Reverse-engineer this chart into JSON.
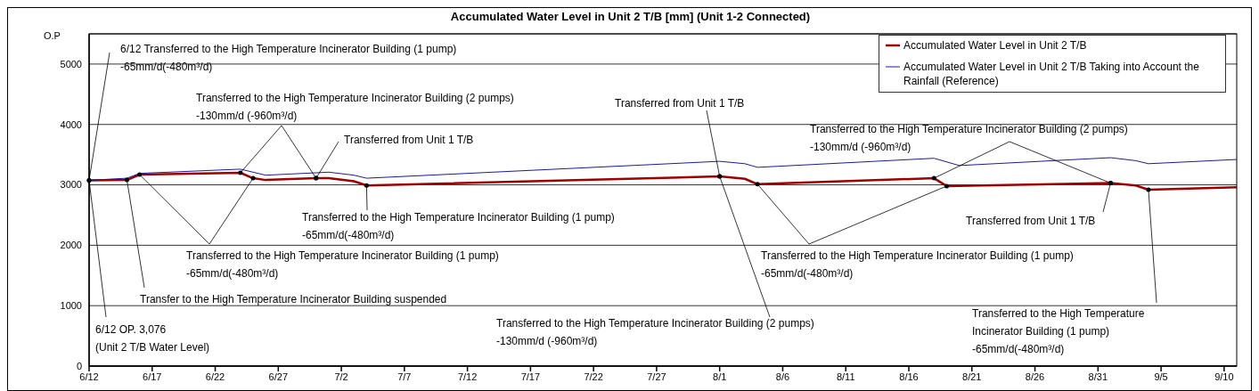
{
  "chart_data": {
    "type": "line",
    "title": "Accumulated Water Level in Unit 2 T/B [mm] (Unit 1-2 Connected)",
    "ylabel": "O.P",
    "series": [
      {
        "name": "Accumulated Water Level in Unit 2 T/B",
        "color": "#a00000",
        "x": [
          "--06-12",
          "--06-15",
          "--06-16",
          "--06-24",
          "--06-25",
          "--06-26",
          "--06-30",
          "--07-01",
          "--07-03",
          "--07-04",
          "--08-01",
          "--08-03",
          "--08-04",
          "--08-18",
          "--08-19",
          "--09-01",
          "--09-03",
          "--09-04",
          "--09-11"
        ],
        "values": [
          3076,
          3080,
          3170,
          3200,
          3110,
          3080,
          3110,
          3110,
          3060,
          2990,
          3140,
          3100,
          3010,
          3110,
          2980,
          3030,
          2990,
          2920,
          2960
        ]
      },
      {
        "name": "Accumulated Water Level in Unit 2 T/B Taking into Account the Rainfall (Reference)",
        "color": "#1a1aa0",
        "x": [
          "--06-12",
          "--06-15",
          "--06-16",
          "--06-24",
          "--06-26",
          "--07-01",
          "--07-03",
          "--07-04",
          "--08-01",
          "--08-03",
          "--08-04",
          "--08-18",
          "--08-20",
          "--09-01",
          "--09-03",
          "--09-04",
          "--09-11"
        ],
        "values": [
          3076,
          3110,
          3190,
          3260,
          3160,
          3210,
          3160,
          3110,
          3390,
          3350,
          3290,
          3440,
          3320,
          3450,
          3400,
          3350,
          3420
        ]
      }
    ],
    "xlim": [
      "--06-12",
      "--09-11"
    ],
    "xticks": [
      {
        "value": "--06-12",
        "label": "6/12"
      },
      {
        "value": "--06-17",
        "label": "6/17"
      },
      {
        "value": "--06-22",
        "label": "6/22"
      },
      {
        "value": "--06-27",
        "label": "6/27"
      },
      {
        "value": "--07-02",
        "label": "7/2"
      },
      {
        "value": "--07-07",
        "label": "7/7"
      },
      {
        "value": "--07-12",
        "label": "7/12"
      },
      {
        "value": "--07-17",
        "label": "7/17"
      },
      {
        "value": "--07-22",
        "label": "7/22"
      },
      {
        "value": "--07-27",
        "label": "7/27"
      },
      {
        "value": "--08-01",
        "label": "8/1"
      },
      {
        "value": "--08-06",
        "label": "8/6"
      },
      {
        "value": "--08-11",
        "label": "8/11"
      },
      {
        "value": "--08-16",
        "label": "8/16"
      },
      {
        "value": "--08-21",
        "label": "8/21"
      },
      {
        "value": "--08-26",
        "label": "8/26"
      },
      {
        "value": "--08-31",
        "label": "8/31"
      },
      {
        "value": "--09-05",
        "label": "9/5"
      },
      {
        "value": "--09-10",
        "label": "9/10"
      }
    ],
    "ylim": [
      0,
      5500
    ],
    "yticks": [
      0,
      1000,
      2000,
      3000,
      4000,
      5000
    ],
    "grid": "y",
    "legend": "top right",
    "marker": "none",
    "line_style": "solid",
    "annotations": [
      {
        "text": "6/12 Transferred to the High Temperature Incinerator Building (1 pump)\n-65mm/d(-480m³/d)",
        "x": "--06-12",
        "y": 3076
      },
      {
        "text": "Transferred to the High Temperature Incinerator Building (2 pumps)\n-130mm/d (-960m³/d)",
        "x": "--06-24",
        "y": 3200
      },
      {
        "text": "Transferred from Unit 1 T/B",
        "x": "--06-30",
        "y": 3110
      },
      {
        "text": "Transferred to the High Temperature Incinerator Building (1 pump)\n-65mm/d(-480m³/d)",
        "x": "--07-04",
        "y": 2990
      },
      {
        "text": "Transferred to the High Temperature Incinerator Building (1 pump)\n-65mm/d(-480m³/d)",
        "x": "--06-16",
        "y": 3170
      },
      {
        "text": "Transfer to the High Temperature Incinerator Building suspended",
        "x": "--06-15",
        "y": 3080
      },
      {
        "text": "6/12 OP. 3,076\n(Unit 2 T/B Water Level)",
        "x": "--06-12",
        "y": 3076
      },
      {
        "text": "Transferred from Unit 1 T/B",
        "x": "--08-01",
        "y": 3140
      },
      {
        "text": "Transferred to the High Temperature Incinerator Building (2 pumps)\n-130mm/d (-960m³/d)",
        "x": "--08-01",
        "y": 3140
      },
      {
        "text": "Transferred to the High Temperature Incinerator Building (1 pump)\n-65mm/d(-480m³/d)",
        "x": "--08-04",
        "y": 3010
      },
      {
        "text": "Transferred to the High Temperature Incinerator Building (2 pumps)\n-130mm/d (-960m³/d)",
        "x": "--08-18",
        "y": 3110
      },
      {
        "text": "Transferred from Unit 1 T/B",
        "x": "--09-01",
        "y": 3030
      },
      {
        "text": "Transferred to the High Temperature\nIncinerator Building (1 pump)\n-65mm/d(-480m³/d)",
        "x": "--09-04",
        "y": 2920
      }
    ]
  }
}
